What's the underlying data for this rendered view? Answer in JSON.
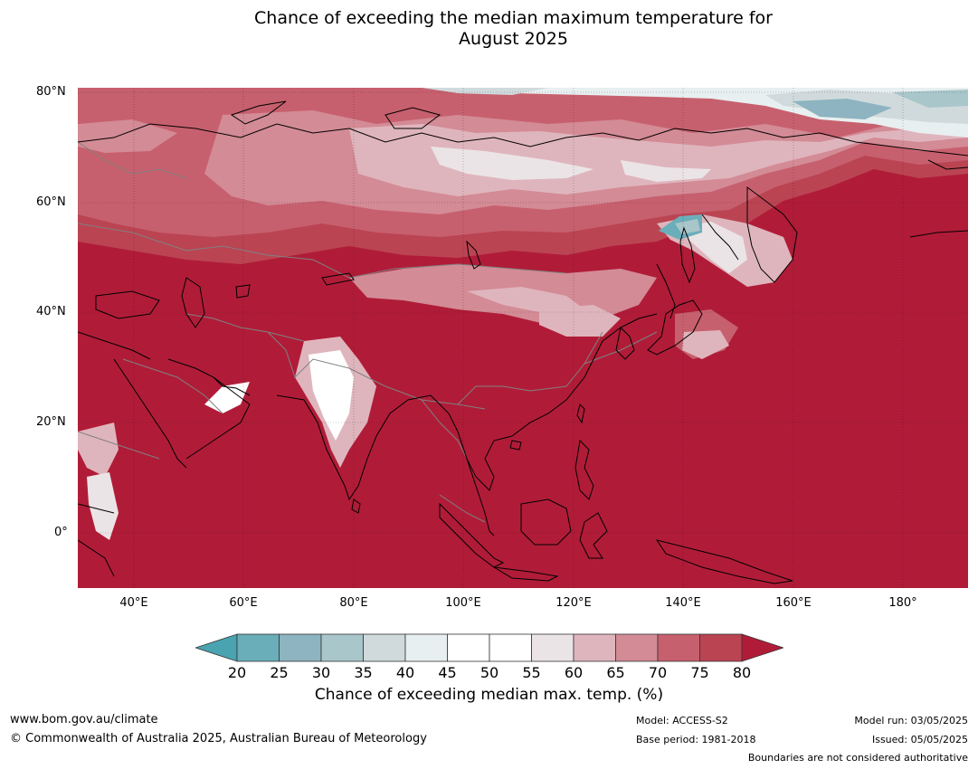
{
  "title": {
    "line1": "Chance of exceeding the median maximum temperature for",
    "line2": "August 2025"
  },
  "map": {
    "lat_labels": [
      "80°N",
      "60°N",
      "40°N",
      "20°N",
      "0°"
    ],
    "lon_labels": [
      "40°E",
      "60°E",
      "80°E",
      "100°E",
      "120°E",
      "140°E",
      "160°E",
      "180°"
    ],
    "lon_range": [
      30,
      192
    ],
    "lat_range": [
      -10,
      81
    ],
    "base_color": "#b01c38",
    "coast_color": "#000000",
    "border_color": "#808080"
  },
  "colorbar": {
    "ticks": [
      "20",
      "25",
      "30",
      "35",
      "40",
      "45",
      "50",
      "55",
      "60",
      "65",
      "70",
      "75",
      "80"
    ],
    "colors": [
      "#4aa3b0",
      "#6aaeba",
      "#8db4c0",
      "#a9c6ca",
      "#d0dadc",
      "#e8eff0",
      "#ffffff",
      "#ffffff",
      "#ebe4e6",
      "#dfb5bd",
      "#d38b96",
      "#c7606e",
      "#bb4452",
      "#b01c38"
    ],
    "label": "Chance of exceeding median max. temp. (%)"
  },
  "footer": {
    "website": "www.bom.gov.au/climate",
    "copyright": "© Commonwealth of Australia 2025, Australian Bureau of Meteorology",
    "model": "Model: ACCESS-S2",
    "base_period": "Base period: 1981-2018",
    "model_run": "Model run: 03/05/2025",
    "issued": "Issued: 05/05/2025",
    "disclaimer": "Boundaries are not considered authoritative"
  }
}
